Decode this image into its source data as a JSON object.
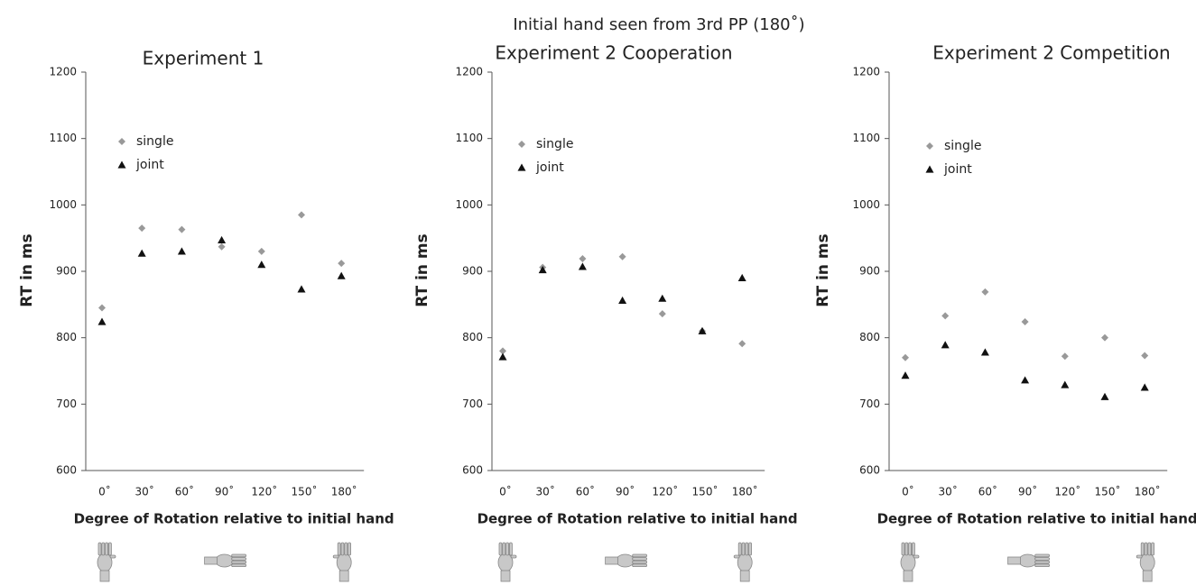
{
  "title": "Initial hand seen from 3rd PP (180˚)",
  "chart_data": [
    {
      "type": "scatter",
      "title": "Experiment 1",
      "ylabel": "RT in ms",
      "xlabel": "Degree of Rotation relative to initial hand",
      "categories": [
        "0˚",
        "30˚",
        "60˚",
        "90˚",
        "120˚",
        "150˚",
        "180˚"
      ],
      "series": [
        {
          "name": "single",
          "color": "#999999",
          "values": [
            845,
            965,
            963,
            937,
            930,
            985,
            912
          ]
        },
        {
          "name": "joint",
          "color": "#111111",
          "values": [
            824,
            927,
            930,
            947,
            910,
            873,
            893
          ]
        }
      ],
      "ylim": [
        600,
        1200
      ],
      "yticks": [
        600,
        700,
        800,
        900,
        1000,
        1100,
        1200
      ]
    },
    {
      "type": "scatter",
      "title": "Experiment 2 Cooperation",
      "ylabel": "RT in ms",
      "xlabel": "Degree of Rotation relative to initial hand",
      "categories": [
        "0˚",
        "30˚",
        "60˚",
        "90˚",
        "120˚",
        "150˚",
        "180˚"
      ],
      "series": [
        {
          "name": "single",
          "color": "#999999",
          "values": [
            780,
            906,
            919,
            922,
            836,
            810,
            791
          ]
        },
        {
          "name": "joint",
          "color": "#111111",
          "values": [
            771,
            902,
            907,
            856,
            859,
            810,
            890
          ]
        }
      ],
      "ylim": [
        600,
        1200
      ],
      "yticks": [
        600,
        700,
        800,
        900,
        1000,
        1100,
        1200
      ]
    },
    {
      "type": "scatter",
      "title": "Experiment 2 Competition",
      "ylabel": "RT in ms",
      "xlabel": "Degree of Rotation relative to initial hand",
      "categories": [
        "0˚",
        "30˚",
        "60˚",
        "90˚",
        "120˚",
        "150˚",
        "180˚"
      ],
      "series": [
        {
          "name": "single",
          "color": "#999999",
          "values": [
            770,
            833,
            869,
            824,
            772,
            800,
            773
          ]
        },
        {
          "name": "joint",
          "color": "#111111",
          "values": [
            743,
            789,
            778,
            736,
            729,
            711,
            725
          ]
        }
      ],
      "ylim": [
        600,
        1200
      ],
      "yticks": [
        600,
        700,
        800,
        900,
        1000,
        1100,
        1200
      ]
    }
  ]
}
